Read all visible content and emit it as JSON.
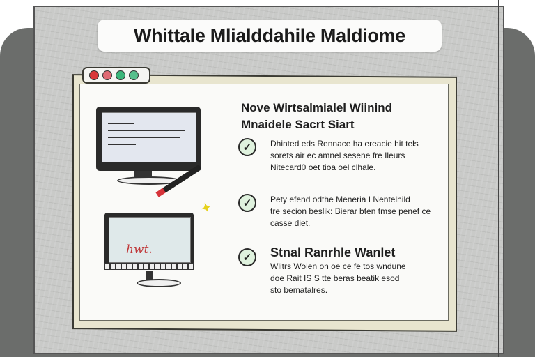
{
  "title": "Whittale Mlialddahile Maldiome",
  "window": {
    "controls": [
      {
        "name": "close",
        "color": "#d9383b"
      },
      {
        "name": "minimize",
        "color": "#e06a74"
      },
      {
        "name": "maximize",
        "color": "#3bb57a"
      },
      {
        "name": "extra",
        "color": "#57bf8c"
      }
    ]
  },
  "monitor2": {
    "scribble": "hwt."
  },
  "content": {
    "heading_line1": "Nove Wirtsalmialel Wiinind",
    "heading_line2": "Mnaidele Sacrt Siart",
    "items": [
      {
        "icon": "check-icon",
        "lines": [
          "Dhinted eds Rennace ha ereacie hit tels",
          "sorets air ec amnel sesene fre Ileurs",
          "Nitecard0 oet tioa oel clhale."
        ]
      },
      {
        "icon": "check-icon",
        "lines": [
          "Pety efend odthe Meneria I Nentelhild",
          "tre secion beslik: Bierar bten tmse penef ce",
          "casse diet."
        ]
      },
      {
        "icon": "check-icon",
        "title": "Stnal Ranrhle Wanlet",
        "lines": [
          "Wlitrs Wolen on oe ce fe tos wndune",
          "doe Rait IS S tte beras beatik esod",
          "sto bematalres."
        ]
      }
    ]
  },
  "colors": {
    "board": "#c9cac8",
    "window_frame": "#e8e5cf",
    "check_fill": "#dff2de"
  }
}
